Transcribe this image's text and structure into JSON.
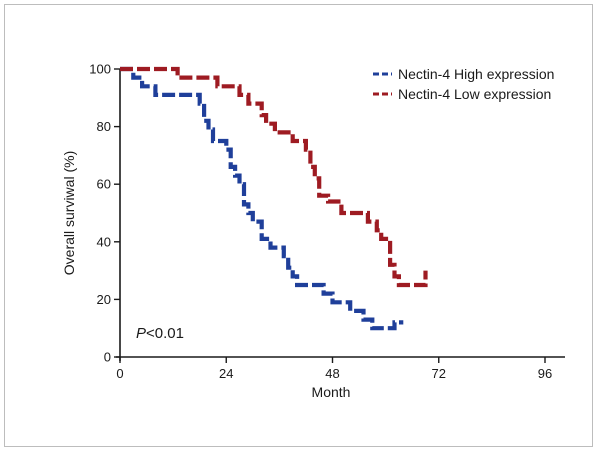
{
  "chart_data": {
    "type": "line",
    "subtype": "kaplan-meier step curve",
    "title": "",
    "xlabel": "Month",
    "ylabel": "Overall surviwal (%)",
    "xlim": [
      0,
      96
    ],
    "ylim": [
      0,
      100
    ],
    "x_ticks": [
      0,
      24,
      48,
      72,
      96
    ],
    "y_ticks": [
      0,
      20,
      40,
      60,
      80,
      100
    ],
    "grid": false,
    "legend_position": "top-right",
    "annotation": {
      "italic_part": "P",
      "rest": "<0.01"
    },
    "series": [
      {
        "name": "Nectin-4 High expression",
        "color": "#1f3f9a",
        "line_style": "dashed",
        "points": [
          [
            0,
            100
          ],
          [
            3,
            100
          ],
          [
            3,
            97
          ],
          [
            5,
            97
          ],
          [
            5,
            94
          ],
          [
            8,
            94
          ],
          [
            8,
            91
          ],
          [
            18,
            91
          ],
          [
            18,
            88
          ],
          [
            19,
            88
          ],
          [
            19,
            82
          ],
          [
            20,
            82
          ],
          [
            20,
            79
          ],
          [
            21,
            79
          ],
          [
            21,
            75
          ],
          [
            24,
            75
          ],
          [
            24,
            72
          ],
          [
            25,
            72
          ],
          [
            25,
            66
          ],
          [
            26,
            66
          ],
          [
            26,
            63
          ],
          [
            27,
            63
          ],
          [
            27,
            60
          ],
          [
            28,
            60
          ],
          [
            28,
            53
          ],
          [
            29,
            53
          ],
          [
            29,
            50
          ],
          [
            30,
            50
          ],
          [
            30,
            47
          ],
          [
            32,
            47
          ],
          [
            32,
            41
          ],
          [
            34,
            41
          ],
          [
            34,
            38
          ],
          [
            37,
            38
          ],
          [
            37,
            35
          ],
          [
            38,
            35
          ],
          [
            38,
            31
          ],
          [
            39,
            31
          ],
          [
            39,
            28
          ],
          [
            40,
            28
          ],
          [
            40,
            25
          ],
          [
            46,
            25
          ],
          [
            46,
            22
          ],
          [
            48,
            22
          ],
          [
            48,
            19
          ],
          [
            52,
            19
          ],
          [
            52,
            16
          ],
          [
            55,
            16
          ],
          [
            55,
            13
          ],
          [
            57,
            13
          ],
          [
            57,
            10
          ],
          [
            62,
            10
          ],
          [
            62,
            12
          ],
          [
            64,
            12
          ]
        ]
      },
      {
        "name": "Nectin-4 Low expression",
        "color": "#9e1b22",
        "line_style": "dashed",
        "points": [
          [
            0,
            100
          ],
          [
            13,
            100
          ],
          [
            13,
            97
          ],
          [
            22,
            97
          ],
          [
            22,
            94
          ],
          [
            27,
            94
          ],
          [
            27,
            91
          ],
          [
            29,
            91
          ],
          [
            29,
            88
          ],
          [
            32,
            88
          ],
          [
            32,
            84
          ],
          [
            33,
            84
          ],
          [
            33,
            81
          ],
          [
            35,
            81
          ],
          [
            35,
            78
          ],
          [
            39,
            78
          ],
          [
            39,
            75
          ],
          [
            42,
            75
          ],
          [
            42,
            72
          ],
          [
            43,
            72
          ],
          [
            43,
            66
          ],
          [
            44,
            66
          ],
          [
            44,
            62
          ],
          [
            45,
            62
          ],
          [
            45,
            56
          ],
          [
            47,
            56
          ],
          [
            47,
            54
          ],
          [
            50,
            54
          ],
          [
            50,
            50
          ],
          [
            56,
            50
          ],
          [
            56,
            47
          ],
          [
            58,
            47
          ],
          [
            58,
            44
          ],
          [
            59,
            44
          ],
          [
            59,
            41
          ],
          [
            61,
            41
          ],
          [
            61,
            32
          ],
          [
            62,
            32
          ],
          [
            62,
            28
          ],
          [
            63,
            28
          ],
          [
            63,
            25
          ],
          [
            69,
            25
          ],
          [
            69,
            30
          ]
        ]
      }
    ]
  }
}
